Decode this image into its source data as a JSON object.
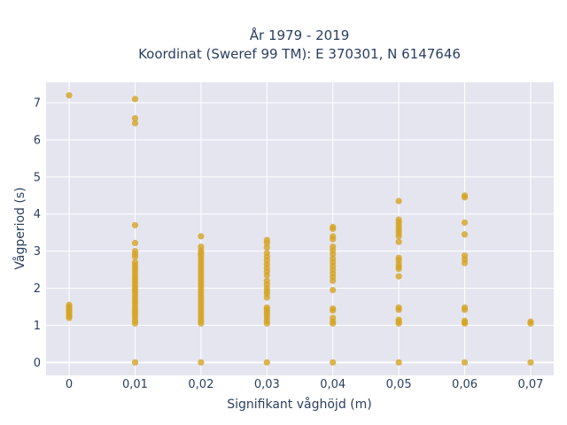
{
  "chart_data": {
    "type": "scatter",
    "title_lines": [
      "År 1979 - 2019",
      "Koordinat (Sweref 99 TM): E 370301, N 6147646"
    ],
    "xlabel": "Signifikant våghöjd (m)",
    "ylabel": "Vågperiod (s)",
    "x_ticks": [
      {
        "value": 0,
        "label": "0"
      },
      {
        "value": 0.01,
        "label": "0,01"
      },
      {
        "value": 0.02,
        "label": "0,02"
      },
      {
        "value": 0.03,
        "label": "0,03"
      },
      {
        "value": 0.04,
        "label": "0,04"
      },
      {
        "value": 0.05,
        "label": "0,05"
      },
      {
        "value": 0.06,
        "label": "0,06"
      },
      {
        "value": 0.07,
        "label": "0,07"
      }
    ],
    "y_ticks": [
      0,
      1,
      2,
      3,
      4,
      5,
      6,
      7
    ],
    "xlim": [
      -0.0035,
      0.0735
    ],
    "ylim": [
      -0.35,
      7.55
    ],
    "grid": true,
    "marker_color": "#d4a422",
    "plot_background": "#e5e5f0",
    "points": [
      {
        "x": 0,
        "y": 7.2
      },
      {
        "x": 0,
        "y": 1.55
      },
      {
        "x": 0,
        "y": 1.5
      },
      {
        "x": 0,
        "y": 1.45
      },
      {
        "x": 0,
        "y": 1.4
      },
      {
        "x": 0,
        "y": 1.35
      },
      {
        "x": 0,
        "y": 1.3
      },
      {
        "x": 0,
        "y": 1.25
      },
      {
        "x": 0,
        "y": 1.2
      },
      {
        "x": 0.01,
        "y": 7.1
      },
      {
        "x": 0.01,
        "y": 6.58
      },
      {
        "x": 0.01,
        "y": 6.45
      },
      {
        "x": 0.01,
        "y": 3.7
      },
      {
        "x": 0.01,
        "y": 3.22
      },
      {
        "x": 0.01,
        "y": 3.0
      },
      {
        "x": 0.01,
        "y": 2.92
      },
      {
        "x": 0.01,
        "y": 2.85
      },
      {
        "x": 0.01,
        "y": 2.7
      },
      {
        "x": 0.01,
        "y": 2.62
      },
      {
        "x": 0.01,
        "y": 2.55
      },
      {
        "x": 0.01,
        "y": 2.48
      },
      {
        "x": 0.01,
        "y": 2.4
      },
      {
        "x": 0.01,
        "y": 2.32
      },
      {
        "x": 0.01,
        "y": 2.25
      },
      {
        "x": 0.01,
        "y": 2.18
      },
      {
        "x": 0.01,
        "y": 2.1
      },
      {
        "x": 0.01,
        "y": 2.02
      },
      {
        "x": 0.01,
        "y": 1.95
      },
      {
        "x": 0.01,
        "y": 1.88
      },
      {
        "x": 0.01,
        "y": 1.8
      },
      {
        "x": 0.01,
        "y": 1.72
      },
      {
        "x": 0.01,
        "y": 1.65
      },
      {
        "x": 0.01,
        "y": 1.58
      },
      {
        "x": 0.01,
        "y": 1.5
      },
      {
        "x": 0.01,
        "y": 1.42
      },
      {
        "x": 0.01,
        "y": 1.35
      },
      {
        "x": 0.01,
        "y": 1.28
      },
      {
        "x": 0.01,
        "y": 1.2
      },
      {
        "x": 0.01,
        "y": 1.12
      },
      {
        "x": 0.01,
        "y": 1.05
      },
      {
        "x": 0.01,
        "y": 0
      },
      {
        "x": 0.02,
        "y": 3.4
      },
      {
        "x": 0.02,
        "y": 3.12
      },
      {
        "x": 0.02,
        "y": 3.02
      },
      {
        "x": 0.02,
        "y": 2.95
      },
      {
        "x": 0.02,
        "y": 2.88
      },
      {
        "x": 0.02,
        "y": 2.8
      },
      {
        "x": 0.02,
        "y": 2.72
      },
      {
        "x": 0.02,
        "y": 2.64
      },
      {
        "x": 0.02,
        "y": 2.56
      },
      {
        "x": 0.02,
        "y": 2.48
      },
      {
        "x": 0.02,
        "y": 2.4
      },
      {
        "x": 0.02,
        "y": 2.32
      },
      {
        "x": 0.02,
        "y": 2.24
      },
      {
        "x": 0.02,
        "y": 2.16
      },
      {
        "x": 0.02,
        "y": 2.08
      },
      {
        "x": 0.02,
        "y": 2.0
      },
      {
        "x": 0.02,
        "y": 1.92
      },
      {
        "x": 0.02,
        "y": 1.84
      },
      {
        "x": 0.02,
        "y": 1.76
      },
      {
        "x": 0.02,
        "y": 1.68
      },
      {
        "x": 0.02,
        "y": 1.6
      },
      {
        "x": 0.02,
        "y": 1.52
      },
      {
        "x": 0.02,
        "y": 1.44
      },
      {
        "x": 0.02,
        "y": 1.36
      },
      {
        "x": 0.02,
        "y": 1.28
      },
      {
        "x": 0.02,
        "y": 1.2
      },
      {
        "x": 0.02,
        "y": 1.12
      },
      {
        "x": 0.02,
        "y": 1.05
      },
      {
        "x": 0.02,
        "y": 0
      },
      {
        "x": 0.03,
        "y": 3.3
      },
      {
        "x": 0.03,
        "y": 3.22
      },
      {
        "x": 0.03,
        "y": 3.1
      },
      {
        "x": 0.03,
        "y": 2.95
      },
      {
        "x": 0.03,
        "y": 2.85
      },
      {
        "x": 0.03,
        "y": 2.75
      },
      {
        "x": 0.03,
        "y": 2.65
      },
      {
        "x": 0.03,
        "y": 2.55
      },
      {
        "x": 0.03,
        "y": 2.45
      },
      {
        "x": 0.03,
        "y": 2.35
      },
      {
        "x": 0.03,
        "y": 2.2
      },
      {
        "x": 0.03,
        "y": 2.1
      },
      {
        "x": 0.03,
        "y": 2.0
      },
      {
        "x": 0.03,
        "y": 1.92
      },
      {
        "x": 0.03,
        "y": 1.85
      },
      {
        "x": 0.03,
        "y": 1.75
      },
      {
        "x": 0.03,
        "y": 1.48
      },
      {
        "x": 0.03,
        "y": 1.42
      },
      {
        "x": 0.03,
        "y": 1.35
      },
      {
        "x": 0.03,
        "y": 1.28
      },
      {
        "x": 0.03,
        "y": 1.2
      },
      {
        "x": 0.03,
        "y": 1.12
      },
      {
        "x": 0.03,
        "y": 1.05
      },
      {
        "x": 0.03,
        "y": 0
      },
      {
        "x": 0.04,
        "y": 3.65
      },
      {
        "x": 0.04,
        "y": 3.6
      },
      {
        "x": 0.04,
        "y": 3.4
      },
      {
        "x": 0.04,
        "y": 3.32
      },
      {
        "x": 0.04,
        "y": 3.12
      },
      {
        "x": 0.04,
        "y": 3.02
      },
      {
        "x": 0.04,
        "y": 2.92
      },
      {
        "x": 0.04,
        "y": 2.8
      },
      {
        "x": 0.04,
        "y": 2.7
      },
      {
        "x": 0.04,
        "y": 2.6
      },
      {
        "x": 0.04,
        "y": 2.5
      },
      {
        "x": 0.04,
        "y": 2.4
      },
      {
        "x": 0.04,
        "y": 2.3
      },
      {
        "x": 0.04,
        "y": 2.2
      },
      {
        "x": 0.04,
        "y": 1.95
      },
      {
        "x": 0.04,
        "y": 1.45
      },
      {
        "x": 0.04,
        "y": 1.4
      },
      {
        "x": 0.04,
        "y": 1.2
      },
      {
        "x": 0.04,
        "y": 1.1
      },
      {
        "x": 0.04,
        "y": 1.05
      },
      {
        "x": 0.04,
        "y": 0
      },
      {
        "x": 0.05,
        "y": 4.35
      },
      {
        "x": 0.05,
        "y": 3.85
      },
      {
        "x": 0.05,
        "y": 3.78
      },
      {
        "x": 0.05,
        "y": 3.7
      },
      {
        "x": 0.05,
        "y": 3.62
      },
      {
        "x": 0.05,
        "y": 3.55
      },
      {
        "x": 0.05,
        "y": 3.48
      },
      {
        "x": 0.05,
        "y": 3.4
      },
      {
        "x": 0.05,
        "y": 3.25
      },
      {
        "x": 0.05,
        "y": 2.82
      },
      {
        "x": 0.05,
        "y": 2.75
      },
      {
        "x": 0.05,
        "y": 2.65
      },
      {
        "x": 0.05,
        "y": 2.58
      },
      {
        "x": 0.05,
        "y": 2.52
      },
      {
        "x": 0.05,
        "y": 2.32
      },
      {
        "x": 0.05,
        "y": 1.48
      },
      {
        "x": 0.05,
        "y": 1.42
      },
      {
        "x": 0.05,
        "y": 1.15
      },
      {
        "x": 0.05,
        "y": 1.1
      },
      {
        "x": 0.05,
        "y": 1.05
      },
      {
        "x": 0.05,
        "y": 0
      },
      {
        "x": 0.06,
        "y": 4.5
      },
      {
        "x": 0.06,
        "y": 4.45
      },
      {
        "x": 0.06,
        "y": 3.77
      },
      {
        "x": 0.06,
        "y": 3.45
      },
      {
        "x": 0.06,
        "y": 2.88
      },
      {
        "x": 0.06,
        "y": 2.78
      },
      {
        "x": 0.06,
        "y": 2.68
      },
      {
        "x": 0.06,
        "y": 1.48
      },
      {
        "x": 0.06,
        "y": 1.42
      },
      {
        "x": 0.06,
        "y": 1.12
      },
      {
        "x": 0.06,
        "y": 1.08
      },
      {
        "x": 0.06,
        "y": 1.05
      },
      {
        "x": 0.06,
        "y": 0
      },
      {
        "x": 0.07,
        "y": 1.1
      },
      {
        "x": 0.07,
        "y": 1.05
      },
      {
        "x": 0.07,
        "y": 0
      }
    ]
  }
}
